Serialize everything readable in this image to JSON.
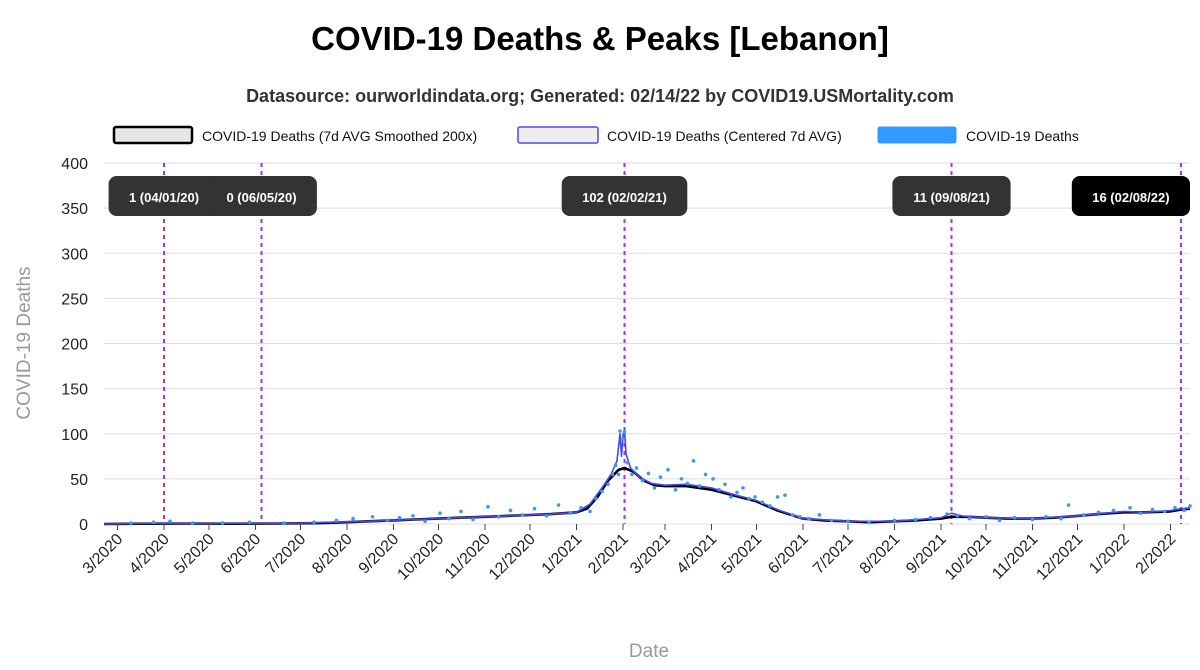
{
  "chart_data": {
    "type": "line",
    "title": "COVID-19 Deaths & Peaks [Lebanon]",
    "subtitle": "Datasource: ourworldindata.org; Generated: 02/14/22 by COVID19.USMortality.com",
    "xlabel": "Date",
    "ylabel": "COVID-19 Deaths",
    "ylim": [
      0,
      400
    ],
    "yticks": [
      0,
      50,
      100,
      150,
      200,
      250,
      300,
      350,
      400
    ],
    "xlim": [
      "2020-02-21",
      "2022-02-14"
    ],
    "xticks": [
      {
        "date": "2020-03-01",
        "label": "3/2020"
      },
      {
        "date": "2020-04-01",
        "label": "4/2020"
      },
      {
        "date": "2020-05-01",
        "label": "5/2020"
      },
      {
        "date": "2020-06-01",
        "label": "6/2020"
      },
      {
        "date": "2020-07-01",
        "label": "7/2020"
      },
      {
        "date": "2020-08-01",
        "label": "8/2020"
      },
      {
        "date": "2020-09-01",
        "label": "9/2020"
      },
      {
        "date": "2020-10-01",
        "label": "10/2020"
      },
      {
        "date": "2020-11-01",
        "label": "11/2020"
      },
      {
        "date": "2020-12-01",
        "label": "12/2020"
      },
      {
        "date": "2021-01-01",
        "label": "1/2021"
      },
      {
        "date": "2021-02-01",
        "label": "2/2021"
      },
      {
        "date": "2021-03-01",
        "label": "3/2021"
      },
      {
        "date": "2021-04-01",
        "label": "4/2021"
      },
      {
        "date": "2021-05-01",
        "label": "5/2021"
      },
      {
        "date": "2021-06-01",
        "label": "6/2021"
      },
      {
        "date": "2021-07-01",
        "label": "7/2021"
      },
      {
        "date": "2021-08-01",
        "label": "8/2021"
      },
      {
        "date": "2021-09-01",
        "label": "9/2021"
      },
      {
        "date": "2021-10-01",
        "label": "10/2021"
      },
      {
        "date": "2021-11-01",
        "label": "11/2021"
      },
      {
        "date": "2021-12-01",
        "label": "12/2021"
      },
      {
        "date": "2022-01-01",
        "label": "1/2022"
      },
      {
        "date": "2022-02-01",
        "label": "2/2022"
      }
    ],
    "legend_position": "top",
    "grid": true,
    "series": [
      {
        "name": "COVID-19 Deaths (7d AVG Smoothed 200x)",
        "kind": "line",
        "color": "#000000",
        "points": [
          [
            "2020-02-21",
            0
          ],
          [
            "2020-03-15",
            0.3
          ],
          [
            "2020-04-15",
            0.5
          ],
          [
            "2020-05-15",
            0.3
          ],
          [
            "2020-06-15",
            0.5
          ],
          [
            "2020-07-15",
            1
          ],
          [
            "2020-08-01",
            2
          ],
          [
            "2020-08-15",
            3
          ],
          [
            "2020-09-01",
            4
          ],
          [
            "2020-09-15",
            5
          ],
          [
            "2020-10-01",
            6
          ],
          [
            "2020-10-15",
            7
          ],
          [
            "2020-11-01",
            8
          ],
          [
            "2020-11-15",
            9
          ],
          [
            "2020-12-01",
            10
          ],
          [
            "2020-12-15",
            11
          ],
          [
            "2021-01-01",
            13
          ],
          [
            "2021-01-08",
            17
          ],
          [
            "2021-01-15",
            30
          ],
          [
            "2021-01-22",
            48
          ],
          [
            "2021-01-29",
            60
          ],
          [
            "2021-02-02",
            62
          ],
          [
            "2021-02-08",
            58
          ],
          [
            "2021-02-15",
            48
          ],
          [
            "2021-02-22",
            43
          ],
          [
            "2021-03-01",
            42
          ],
          [
            "2021-03-15",
            42
          ],
          [
            "2021-04-01",
            38
          ],
          [
            "2021-04-15",
            32
          ],
          [
            "2021-05-01",
            25
          ],
          [
            "2021-05-15",
            15
          ],
          [
            "2021-06-01",
            6
          ],
          [
            "2021-06-15",
            4
          ],
          [
            "2021-07-01",
            3
          ],
          [
            "2021-07-15",
            2
          ],
          [
            "2021-08-01",
            3
          ],
          [
            "2021-08-15",
            4
          ],
          [
            "2021-09-01",
            6
          ],
          [
            "2021-09-08",
            8
          ],
          [
            "2021-09-20",
            8
          ],
          [
            "2021-10-01",
            7
          ],
          [
            "2021-10-15",
            6
          ],
          [
            "2021-11-01",
            6
          ],
          [
            "2021-11-15",
            7
          ],
          [
            "2021-12-01",
            9
          ],
          [
            "2021-12-15",
            11
          ],
          [
            "2022-01-01",
            13
          ],
          [
            "2022-01-15",
            13
          ],
          [
            "2022-02-01",
            14
          ],
          [
            "2022-02-08",
            16
          ],
          [
            "2022-02-14",
            17
          ]
        ]
      },
      {
        "name": "COVID-19 Deaths (Centered 7d AVG)",
        "kind": "line",
        "color": "#4848e8",
        "points": [
          [
            "2020-02-21",
            0
          ],
          [
            "2020-04-01",
            1
          ],
          [
            "2020-05-01",
            0.5
          ],
          [
            "2020-07-01",
            1
          ],
          [
            "2020-08-15",
            3
          ],
          [
            "2020-09-15",
            5
          ],
          [
            "2020-10-15",
            7
          ],
          [
            "2020-11-15",
            9
          ],
          [
            "2020-12-15",
            11
          ],
          [
            "2021-01-01",
            13
          ],
          [
            "2021-01-10",
            22
          ],
          [
            "2021-01-18",
            40
          ],
          [
            "2021-01-24",
            55
          ],
          [
            "2021-01-28",
            70
          ],
          [
            "2021-01-30",
            100
          ],
          [
            "2021-01-31",
            75
          ],
          [
            "2021-02-01",
            98
          ],
          [
            "2021-02-02",
            105
          ],
          [
            "2021-02-03",
            78
          ],
          [
            "2021-02-06",
            62
          ],
          [
            "2021-02-12",
            52
          ],
          [
            "2021-02-20",
            45
          ],
          [
            "2021-03-01",
            43
          ],
          [
            "2021-03-15",
            44
          ],
          [
            "2021-04-01",
            40
          ],
          [
            "2021-04-15",
            33
          ],
          [
            "2021-05-01",
            26
          ],
          [
            "2021-05-15",
            16
          ],
          [
            "2021-06-01",
            6
          ],
          [
            "2021-07-01",
            3
          ],
          [
            "2021-08-01",
            3
          ],
          [
            "2021-09-01",
            7
          ],
          [
            "2021-09-08",
            12
          ],
          [
            "2021-09-15",
            9
          ],
          [
            "2021-10-01",
            7
          ],
          [
            "2021-11-01",
            6
          ],
          [
            "2021-12-01",
            9
          ],
          [
            "2022-01-01",
            14
          ],
          [
            "2022-01-15",
            13
          ],
          [
            "2022-02-01",
            15
          ],
          [
            "2022-02-08",
            17
          ],
          [
            "2022-02-14",
            18
          ]
        ]
      },
      {
        "name": "COVID-19 Deaths",
        "kind": "points",
        "color": "#3399ff",
        "points": [
          [
            "2020-03-10",
            1
          ],
          [
            "2020-03-25",
            2
          ],
          [
            "2020-04-05",
            3
          ],
          [
            "2020-04-20",
            1
          ],
          [
            "2020-05-10",
            1
          ],
          [
            "2020-05-28",
            2
          ],
          [
            "2020-06-20",
            1
          ],
          [
            "2020-07-10",
            2
          ],
          [
            "2020-07-25",
            4
          ],
          [
            "2020-08-05",
            6
          ],
          [
            "2020-08-18",
            8
          ],
          [
            "2020-08-28",
            4
          ],
          [
            "2020-09-05",
            7
          ],
          [
            "2020-09-14",
            9
          ],
          [
            "2020-09-22",
            3
          ],
          [
            "2020-10-02",
            12
          ],
          [
            "2020-10-08",
            6
          ],
          [
            "2020-10-16",
            14
          ],
          [
            "2020-10-24",
            5
          ],
          [
            "2020-11-03",
            19
          ],
          [
            "2020-11-10",
            8
          ],
          [
            "2020-11-18",
            15
          ],
          [
            "2020-11-26",
            10
          ],
          [
            "2020-12-04",
            17
          ],
          [
            "2020-12-12",
            9
          ],
          [
            "2020-12-20",
            21
          ],
          [
            "2020-12-28",
            12
          ],
          [
            "2021-01-04",
            18
          ],
          [
            "2021-01-10",
            14
          ],
          [
            "2021-01-14",
            28
          ],
          [
            "2021-01-18",
            36
          ],
          [
            "2021-01-22",
            44
          ],
          [
            "2021-01-25",
            55
          ],
          [
            "2021-01-27",
            65
          ],
          [
            "2021-01-29",
            55
          ],
          [
            "2021-01-30",
            103
          ],
          [
            "2021-02-01",
            95
          ],
          [
            "2021-02-02",
            102
          ],
          [
            "2021-02-04",
            68
          ],
          [
            "2021-02-07",
            55
          ],
          [
            "2021-02-10",
            62
          ],
          [
            "2021-02-14",
            48
          ],
          [
            "2021-02-18",
            56
          ],
          [
            "2021-02-22",
            40
          ],
          [
            "2021-02-26",
            52
          ],
          [
            "2021-03-03",
            60
          ],
          [
            "2021-03-08",
            38
          ],
          [
            "2021-03-12",
            50
          ],
          [
            "2021-03-16",
            45
          ],
          [
            "2021-03-20",
            70
          ],
          [
            "2021-03-24",
            42
          ],
          [
            "2021-03-28",
            55
          ],
          [
            "2021-04-02",
            50
          ],
          [
            "2021-04-06",
            38
          ],
          [
            "2021-04-10",
            44
          ],
          [
            "2021-04-14",
            30
          ],
          [
            "2021-04-18",
            35
          ],
          [
            "2021-04-22",
            40
          ],
          [
            "2021-04-26",
            28
          ],
          [
            "2021-04-30",
            30
          ],
          [
            "2021-05-05",
            24
          ],
          [
            "2021-05-10",
            20
          ],
          [
            "2021-05-15",
            30
          ],
          [
            "2021-05-20",
            32
          ],
          [
            "2021-05-25",
            10
          ],
          [
            "2021-05-30",
            8
          ],
          [
            "2021-06-05",
            6
          ],
          [
            "2021-06-12",
            10
          ],
          [
            "2021-06-20",
            4
          ],
          [
            "2021-07-01",
            3
          ],
          [
            "2021-07-15",
            2
          ],
          [
            "2021-08-01",
            4
          ],
          [
            "2021-08-15",
            5
          ],
          [
            "2021-08-25",
            7
          ],
          [
            "2021-09-05",
            11
          ],
          [
            "2021-09-12",
            9
          ],
          [
            "2021-09-20",
            6
          ],
          [
            "2021-10-01",
            8
          ],
          [
            "2021-10-10",
            4
          ],
          [
            "2021-10-20",
            7
          ],
          [
            "2021-11-01",
            5
          ],
          [
            "2021-11-10",
            8
          ],
          [
            "2021-11-20",
            6
          ],
          [
            "2021-11-25",
            21
          ],
          [
            "2021-12-05",
            10
          ],
          [
            "2021-12-15",
            13
          ],
          [
            "2021-12-25",
            15
          ],
          [
            "2022-01-05",
            18
          ],
          [
            "2022-01-12",
            12
          ],
          [
            "2022-01-20",
            16
          ],
          [
            "2022-01-28",
            14
          ],
          [
            "2022-02-04",
            18
          ],
          [
            "2022-02-10",
            15
          ],
          [
            "2022-02-14",
            20
          ]
        ]
      }
    ],
    "peaks": [
      {
        "date": "2020-04-01",
        "label": "1 (04/01/20)",
        "highlight": false
      },
      {
        "date": "2020-06-05",
        "label": "0 (06/05/20)",
        "highlight": false
      },
      {
        "date": "2021-02-02",
        "label": "102 (02/02/21)",
        "highlight": false
      },
      {
        "date": "2021-09-08",
        "label": "11 (09/08/21)",
        "highlight": false
      },
      {
        "date": "2022-02-08",
        "label": "16 (02/08/22)",
        "highlight": true
      }
    ],
    "colors": {
      "peak_line": "#9933ff",
      "peak_box": "#333333",
      "peak_box_highlight": "#000000",
      "grid": "#dddddd"
    }
  }
}
